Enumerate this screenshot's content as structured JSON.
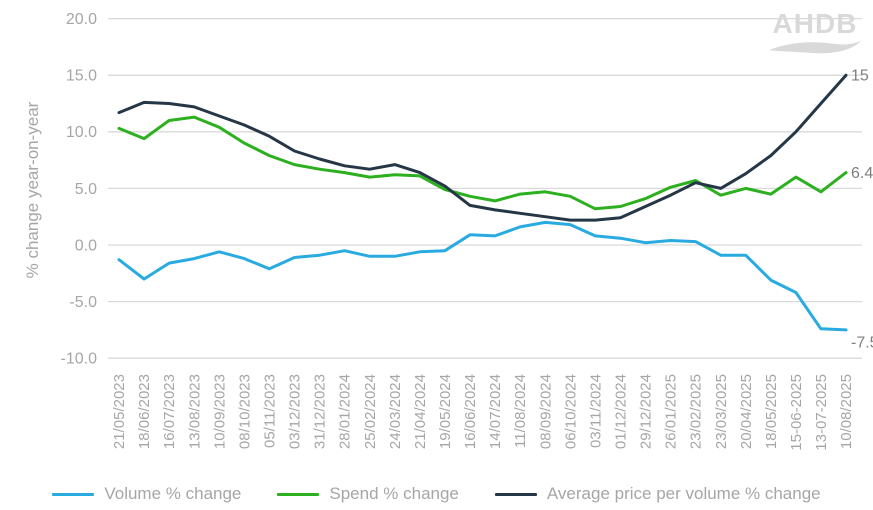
{
  "logo": {
    "text": "AHDB"
  },
  "chart_data": {
    "type": "line",
    "title": "",
    "ylabel": "% change year-on-year",
    "xlabel": "",
    "ylim": [
      -10,
      20
    ],
    "grid": true,
    "legend_position": "bottom",
    "y_tick_values": [
      20,
      15,
      10,
      5,
      0,
      -5,
      -10
    ],
    "y_tick_labels": [
      "20.0",
      "15.0",
      "10.0",
      "5.0",
      "0.0",
      "-5.0",
      "-10.0"
    ],
    "categories": [
      "21/05/2023",
      "18/06/2023",
      "16/07/2023",
      "13/08/2023",
      "10/09/2023",
      "08/10/2023",
      "05/11/2023",
      "03/12/2023",
      "31/12/2023",
      "28/01/2024",
      "25/02/2024",
      "24/03/2024",
      "21/04/2024",
      "19/05/2024",
      "16/06/2024",
      "14/07/2024",
      "11/08/2024",
      "08/09/2024",
      "06/10/2024",
      "03/11/2024",
      "01/12/2024",
      "29/12/2024",
      "26/01/2025",
      "23/02/2025",
      "23/03/2025",
      "20/04/2025",
      "18/05/2025",
      "15-06-2025",
      "13-07-2025",
      "10/08/2025"
    ],
    "series": [
      {
        "name": "Volume % change",
        "color": "#29abe2",
        "end_label": "-7.5",
        "values": [
          -1.3,
          -3.0,
          -1.6,
          -1.2,
          -0.6,
          -1.2,
          -2.1,
          -1.1,
          -0.9,
          -0.5,
          -1.0,
          -1.0,
          -0.6,
          -0.5,
          0.9,
          0.8,
          1.6,
          2.0,
          1.8,
          0.8,
          0.6,
          0.2,
          0.4,
          0.3,
          -0.9,
          -0.9,
          -3.1,
          -4.2,
          -7.4,
          -7.5
        ]
      },
      {
        "name": "Spend % change",
        "color": "#2db020",
        "end_label": "6.4",
        "values": [
          10.3,
          9.4,
          11.0,
          11.3,
          10.4,
          9.0,
          7.9,
          7.1,
          6.7,
          6.4,
          6.0,
          6.2,
          6.1,
          4.9,
          4.3,
          3.9,
          4.5,
          4.7,
          4.3,
          3.2,
          3.4,
          4.1,
          5.1,
          5.7,
          4.4,
          5.0,
          4.5,
          6.0,
          4.7,
          6.4
        ]
      },
      {
        "name": "Average price per volume % change",
        "color": "#253746",
        "end_label": "15",
        "values": [
          11.7,
          12.6,
          12.5,
          12.2,
          11.4,
          10.6,
          9.6,
          8.3,
          7.6,
          7.0,
          6.7,
          7.1,
          6.4,
          5.2,
          3.5,
          3.1,
          2.8,
          2.5,
          2.2,
          2.2,
          2.4,
          3.4,
          4.4,
          5.5,
          5.0,
          6.3,
          7.9,
          10.0,
          12.5,
          15.0
        ]
      }
    ]
  },
  "colors": {
    "grid": "#d9d9d9",
    "axis_text": "#a6a6a6",
    "end_label": "#7f7f7f",
    "logo": "#d9d9d9"
  }
}
